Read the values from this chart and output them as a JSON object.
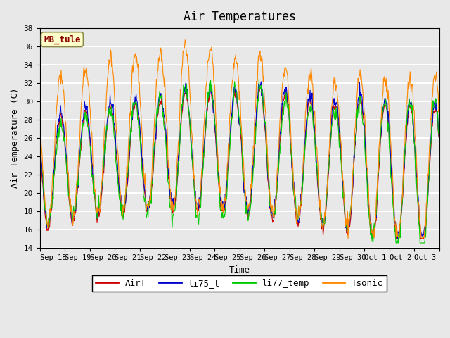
{
  "title": "Air Temperatures",
  "xlabel": "Time",
  "ylabel": "Air Temperature (C)",
  "ylim": [
    14,
    38
  ],
  "yticks": [
    14,
    16,
    18,
    20,
    22,
    24,
    26,
    28,
    30,
    32,
    34,
    36,
    38
  ],
  "bg_color": "#e8e8e8",
  "plot_bg_color": "#e8e8e8",
  "grid_color": "white",
  "colors": {
    "AirT": "#cc0000",
    "li75_t": "#0000cc",
    "li77_temp": "#00cc00",
    "Tsonic": "#ff8800"
  },
  "annotation_text": "MB_tule",
  "annotation_color": "#8b0000",
  "annotation_bg": "#ffffcc",
  "legend_labels": [
    "AirT",
    "li75_t",
    "li77_temp",
    "Tsonic"
  ],
  "x_tick_labels": [
    "Sep 18",
    "Sep 19",
    "Sep 20",
    "Sep 21",
    "Sep 22",
    "Sep 23",
    "Sep 24",
    "Sep 25",
    "Sep 26",
    "Sep 27",
    "Sep 28",
    "Sep 29",
    "Sep 30",
    "Oct 1",
    "Oct 2",
    "Oct 3"
  ],
  "n_days": 16,
  "pts_per_day": 48
}
